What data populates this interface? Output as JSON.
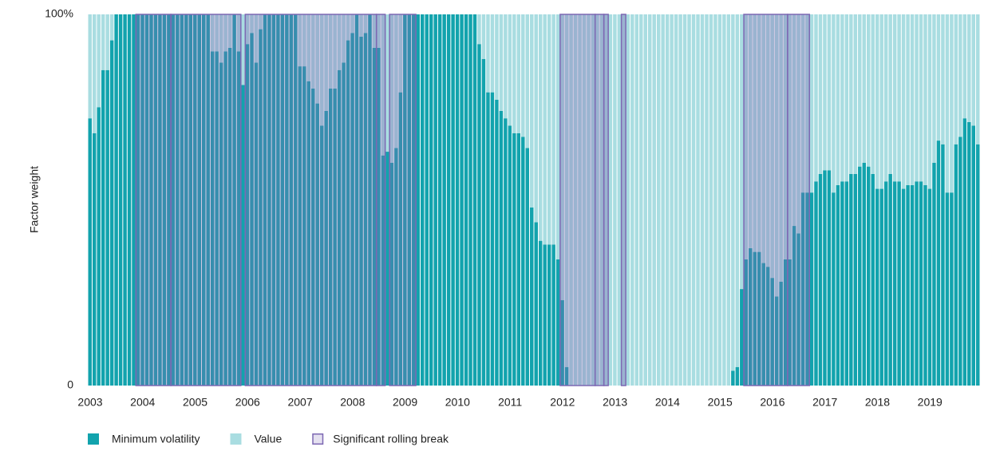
{
  "chart_data": {
    "type": "stacked_bar",
    "y_label": "Factor weight",
    "ylim": [
      0,
      100
    ],
    "yticks": [
      0,
      {
        "value": 100,
        "label": "100%"
      }
    ],
    "categories": [
      "2003",
      null,
      null,
      null,
      null,
      null,
      null,
      null,
      null,
      null,
      null,
      null,
      "2004",
      null,
      null,
      null,
      null,
      null,
      null,
      null,
      null,
      null,
      null,
      null,
      "2005",
      null,
      null,
      null,
      null,
      null,
      null,
      null,
      null,
      null,
      null,
      null,
      "2006",
      null,
      null,
      null,
      null,
      null,
      null,
      null,
      null,
      null,
      null,
      null,
      "2007",
      null,
      null,
      null,
      null,
      null,
      null,
      null,
      null,
      null,
      null,
      null,
      "2008",
      null,
      null,
      null,
      null,
      null,
      null,
      null,
      null,
      null,
      null,
      null,
      "2009",
      null,
      null,
      null,
      null,
      null,
      null,
      null,
      null,
      null,
      null,
      null,
      "2010",
      null,
      null,
      null,
      null,
      null,
      null,
      null,
      null,
      null,
      null,
      null,
      "2011",
      null,
      null,
      null,
      null,
      null,
      null,
      null,
      null,
      null,
      null,
      null,
      "2012",
      null,
      null,
      null,
      null,
      null,
      null,
      null,
      null,
      null,
      null,
      null,
      "2013",
      null,
      null,
      null,
      null,
      null,
      null,
      null,
      null,
      null,
      null,
      null,
      "2014",
      null,
      null,
      null,
      null,
      null,
      null,
      null,
      null,
      null,
      null,
      null,
      "2015",
      null,
      null,
      null,
      null,
      null,
      null,
      null,
      null,
      null,
      null,
      null,
      "2016",
      null,
      null,
      null,
      null,
      null,
      null,
      null,
      null,
      null,
      null,
      null,
      "2017",
      null,
      null,
      null,
      null,
      null,
      null,
      null,
      null,
      null,
      null,
      null,
      "2018",
      null,
      null,
      null,
      null,
      null,
      null,
      null,
      null,
      null,
      null,
      null,
      "2019",
      null,
      null,
      null,
      null,
      null,
      null,
      null,
      null,
      null,
      null,
      null
    ],
    "series": [
      {
        "name": "Minimum volatility",
        "color": "#12a3ad",
        "values": [
          72,
          68,
          75,
          85,
          85,
          93,
          100,
          100,
          100,
          100,
          100,
          100,
          100,
          100,
          100,
          100,
          100,
          100,
          100,
          100,
          100,
          100,
          100,
          100,
          100,
          100,
          100,
          100,
          90,
          90,
          87,
          90,
          91,
          100,
          90,
          81,
          92,
          95,
          87,
          96,
          100,
          100,
          100,
          100,
          100,
          100,
          100,
          100,
          86,
          86,
          82,
          80,
          76,
          70,
          74,
          80,
          80,
          85,
          87,
          93,
          95,
          100,
          94,
          95,
          100,
          91,
          91,
          62,
          63,
          60,
          64,
          79,
          100,
          100,
          100,
          100,
          100,
          100,
          100,
          100,
          100,
          100,
          100,
          100,
          100,
          100,
          100,
          100,
          100,
          92,
          88,
          79,
          79,
          77,
          74,
          72,
          70,
          68,
          68,
          67,
          64,
          48,
          44,
          39,
          38,
          38,
          38,
          34,
          23,
          5,
          0,
          0,
          0,
          0,
          0,
          0,
          0,
          0,
          0,
          0,
          0,
          0,
          0,
          0,
          0,
          0,
          0,
          0,
          0,
          0,
          0,
          0,
          0,
          0,
          0,
          0,
          0,
          0,
          0,
          0,
          0,
          0,
          0,
          0,
          0,
          0,
          0,
          4,
          5,
          26,
          34,
          37,
          36,
          36,
          33,
          32,
          29,
          24,
          28,
          34,
          34,
          43,
          41,
          52,
          52,
          52,
          55,
          57,
          58,
          58,
          52,
          54,
          55,
          55,
          57,
          57,
          59,
          60,
          59,
          57,
          53,
          53,
          55,
          57,
          55,
          55,
          53,
          54,
          54,
          55,
          55,
          54,
          53,
          60,
          66,
          65,
          52,
          52,
          65,
          67,
          72,
          71,
          70,
          65
        ]
      },
      {
        "name": "Value",
        "color": "#a9dde1",
        "values": [
          28,
          32,
          25,
          15,
          15,
          7,
          0,
          0,
          0,
          0,
          0,
          0,
          0,
          0,
          0,
          0,
          0,
          0,
          0,
          0,
          0,
          0,
          0,
          0,
          0,
          0,
          0,
          0,
          10,
          10,
          13,
          10,
          9,
          0,
          10,
          19,
          8,
          5,
          13,
          4,
          0,
          0,
          0,
          0,
          0,
          0,
          0,
          0,
          14,
          14,
          18,
          20,
          24,
          30,
          26,
          20,
          20,
          15,
          13,
          7,
          5,
          0,
          6,
          5,
          0,
          9,
          9,
          38,
          37,
          40,
          36,
          21,
          0,
          0,
          0,
          0,
          0,
          0,
          0,
          0,
          0,
          0,
          0,
          0,
          0,
          0,
          0,
          0,
          0,
          8,
          12,
          21,
          21,
          23,
          26,
          28,
          30,
          32,
          32,
          33,
          36,
          52,
          56,
          61,
          62,
          62,
          62,
          66,
          77,
          95,
          100,
          100,
          100,
          100,
          100,
          100,
          100,
          100,
          100,
          100,
          100,
          100,
          100,
          100,
          100,
          100,
          100,
          100,
          100,
          100,
          100,
          100,
          100,
          100,
          100,
          100,
          100,
          100,
          100,
          100,
          100,
          100,
          100,
          100,
          100,
          100,
          100,
          96,
          95,
          74,
          66,
          63,
          64,
          64,
          67,
          68,
          71,
          76,
          72,
          66,
          66,
          57,
          59,
          48,
          48,
          48,
          45,
          43,
          42,
          42,
          48,
          46,
          45,
          45,
          43,
          43,
          41,
          40,
          41,
          43,
          47,
          47,
          45,
          43,
          45,
          45,
          47,
          46,
          46,
          45,
          45,
          46,
          47,
          40,
          34,
          35,
          48,
          48,
          35,
          33,
          28,
          29,
          30,
          35
        ]
      }
    ],
    "breaks": {
      "name": "Significant rolling break",
      "color": "#7d68b3",
      "ranges": [
        [
          11,
          18
        ],
        [
          19,
          34
        ],
        [
          36,
          65
        ],
        [
          66,
          67
        ],
        [
          69,
          74
        ],
        [
          108,
          115
        ],
        [
          116,
          117
        ],
        [
          118,
          118
        ],
        [
          122,
          122
        ],
        [
          150,
          159
        ],
        [
          160,
          164
        ]
      ]
    }
  }
}
